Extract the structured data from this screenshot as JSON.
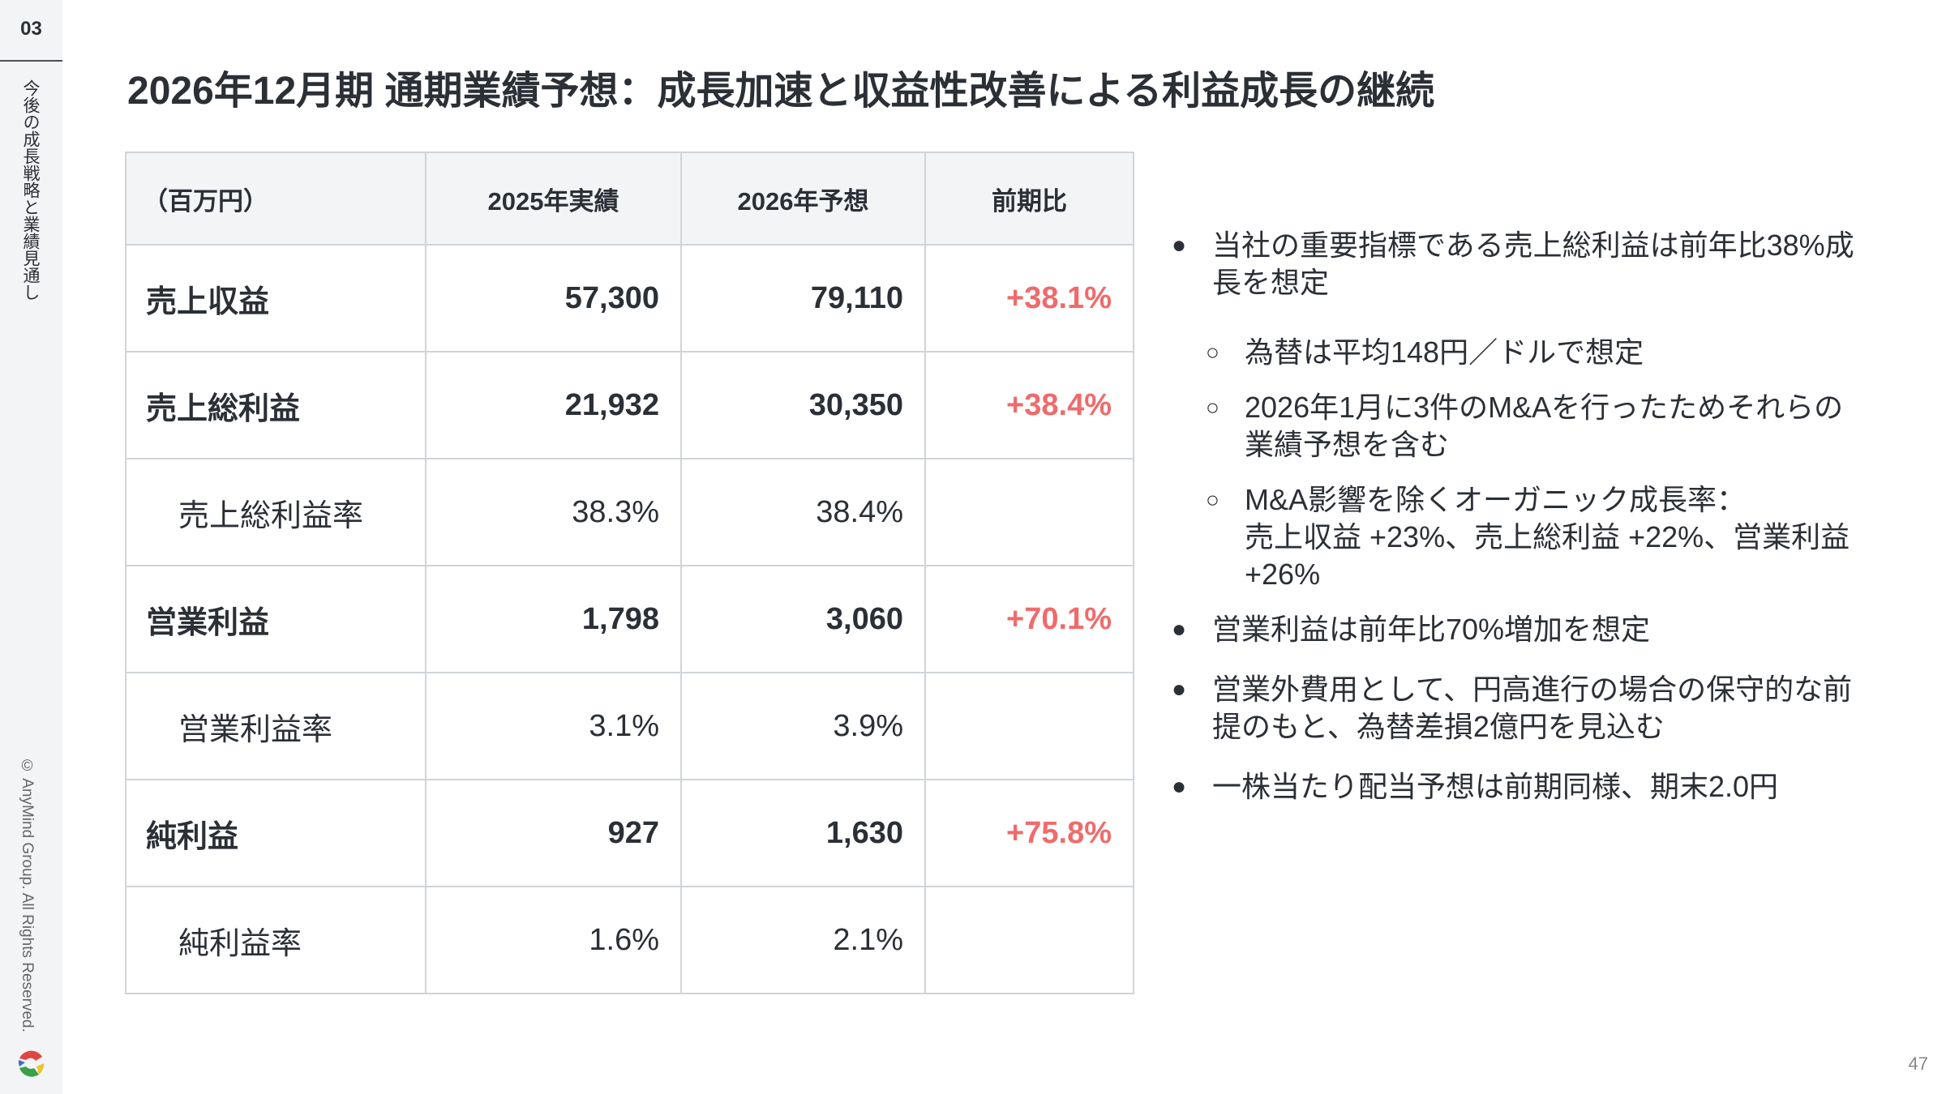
{
  "sidebar": {
    "section_number": "03",
    "section_title": "今後の成長戦略と業績見通し",
    "copyright": "© AnyMind Group. All Rights Reserved."
  },
  "title": "2026年12月期 通期業績予想：成長加速と収益性改善による利益成長の継続",
  "table": {
    "headers": [
      "（百万円）",
      "2025年実績",
      "2026年予想",
      "前期比"
    ],
    "rows": [
      {
        "label": "売上収益",
        "v2025": "57,300",
        "v2026": "79,110",
        "yoy": "+38.1%"
      },
      {
        "label": "売上総利益",
        "v2025": "21,932",
        "v2026": "30,350",
        "yoy": "+38.4%"
      },
      {
        "label": "売上総利益率",
        "v2025": "38.3%",
        "v2026": "38.4%",
        "yoy": ""
      },
      {
        "label": "営業利益",
        "v2025": "1,798",
        "v2026": "3,060",
        "yoy": "+70.1%"
      },
      {
        "label": "営業利益率",
        "v2025": "3.1%",
        "v2026": "3.9%",
        "yoy": ""
      },
      {
        "label": "純利益",
        "v2025": "927",
        "v2026": "1,630",
        "yoy": "+75.8%"
      },
      {
        "label": "純利益率",
        "v2025": "1.6%",
        "v2026": "2.1%",
        "yoy": ""
      }
    ]
  },
  "bullets": {
    "b1": "当社の重要指標である売上総利益は前年比38%成長を想定",
    "s1": "為替は平均148円／ドルで想定",
    "s2": "2026年1月に3件のM&Aを行ったためそれらの業績予想を含む",
    "s3a": "M&A影響を除くオーガニック成長率：",
    "s3b": "売上収益 +23%、売上総利益 +22%、営業利益 +26%",
    "b2": "営業利益は前年比70%増加を想定",
    "b3": "営業外費用として、円高進行の場合の保守的な前提のもと、為替差損2億円を見込む",
    "b4": "一株当たり配当予想は前期同様、期末2.0円"
  },
  "page_number": "47",
  "colors": {
    "accent_red": "#ef6b6b",
    "sidebar_bg": "#f3f4f6"
  }
}
